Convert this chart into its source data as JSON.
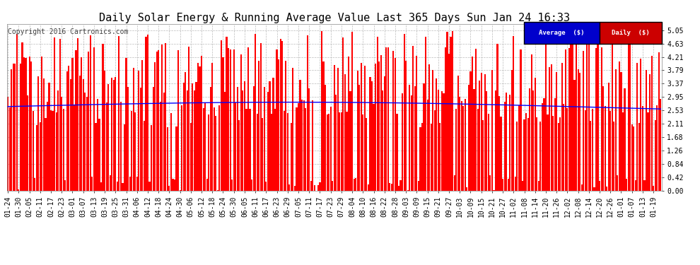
{
  "title": "Daily Solar Energy & Running Average Value Last 365 Days Sun Jan 24 16:33",
  "copyright": "Copyright 2016 Cartronics.com",
  "background_color": "#ffffff",
  "plot_bg_color": "#ffffff",
  "bar_color": "#ff0000",
  "avg_line_color": "#0000ff",
  "grid_color": "#aaaaaa",
  "yticks": [
    0.0,
    0.42,
    0.84,
    1.26,
    1.68,
    2.11,
    2.53,
    2.95,
    3.37,
    3.79,
    4.21,
    4.63,
    5.05
  ],
  "ymax": 5.25,
  "ymin": 0.0,
  "legend_avg_bg": "#0000cc",
  "legend_daily_bg": "#cc0000",
  "legend_text": "Average  ($)",
  "legend_daily_text": "Daily  ($)",
  "title_fontsize": 11,
  "copyright_fontsize": 7,
  "tick_fontsize": 7,
  "num_days": 365,
  "start_date": "2015-01-24",
  "xtick_labels": [
    "01-24",
    "01-30",
    "02-05",
    "02-11",
    "02-17",
    "02-23",
    "03-01",
    "03-07",
    "03-13",
    "03-19",
    "03-25",
    "03-31",
    "04-06",
    "04-12",
    "04-18",
    "04-24",
    "04-30",
    "05-06",
    "05-12",
    "05-18",
    "05-24",
    "05-30",
    "06-05",
    "06-11",
    "06-17",
    "06-23",
    "06-29",
    "07-05",
    "07-11",
    "07-17",
    "07-23",
    "07-29",
    "08-04",
    "08-10",
    "08-16",
    "08-22",
    "08-28",
    "09-03",
    "09-09",
    "09-15",
    "09-21",
    "09-27",
    "10-03",
    "10-09",
    "10-15",
    "10-21",
    "10-27",
    "11-02",
    "11-08",
    "11-14",
    "11-20",
    "11-26",
    "12-02",
    "12-08",
    "12-14",
    "12-20",
    "12-26",
    "01-01",
    "01-07",
    "01-13",
    "01-19"
  ]
}
